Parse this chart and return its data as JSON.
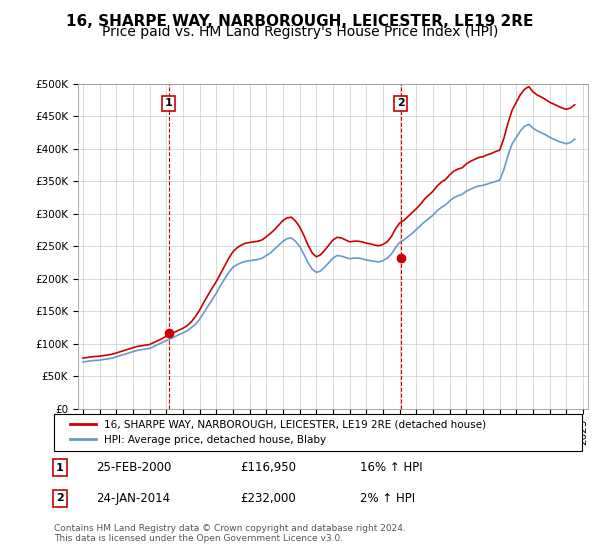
{
  "title": "16, SHARPE WAY, NARBOROUGH, LEICESTER, LE19 2RE",
  "subtitle": "Price paid vs. HM Land Registry's House Price Index (HPI)",
  "ylabel_ticks": [
    "£0",
    "£50K",
    "£100K",
    "£150K",
    "£200K",
    "£250K",
    "£300K",
    "£350K",
    "£400K",
    "£450K",
    "£500K"
  ],
  "ytick_values": [
    0,
    50000,
    100000,
    150000,
    200000,
    250000,
    300000,
    350000,
    400000,
    450000,
    500000
  ],
  "ylim": [
    0,
    500000
  ],
  "xlim_years": [
    1995,
    2025
  ],
  "xtick_years": [
    1995,
    1996,
    1997,
    1998,
    1999,
    2000,
    2001,
    2002,
    2003,
    2004,
    2005,
    2006,
    2007,
    2008,
    2009,
    2010,
    2011,
    2012,
    2013,
    2014,
    2015,
    2016,
    2017,
    2018,
    2019,
    2020,
    2021,
    2022,
    2023,
    2024,
    2025
  ],
  "sale1_x": 2000.15,
  "sale1_y": 116950,
  "sale1_label": "1",
  "sale2_x": 2014.07,
  "sale2_y": 232000,
  "sale2_label": "2",
  "vline1_x": 2000.15,
  "vline2_x": 2014.07,
  "legend_line1": "16, SHARPE WAY, NARBOROUGH, LEICESTER, LE19 2RE (detached house)",
  "legend_line2": "HPI: Average price, detached house, Blaby",
  "annotation1_box": "1",
  "annotation1_date": "25-FEB-2000",
  "annotation1_price": "£116,950",
  "annotation1_hpi": "16% ↑ HPI",
  "annotation2_box": "2",
  "annotation2_date": "24-JAN-2014",
  "annotation2_price": "£232,000",
  "annotation2_hpi": "2% ↑ HPI",
  "footer": "Contains HM Land Registry data © Crown copyright and database right 2024.\nThis data is licensed under the Open Government Licence v3.0.",
  "line_color_red": "#cc0000",
  "line_color_blue": "#6699cc",
  "background_color": "#ffffff",
  "grid_color": "#cccccc",
  "title_fontsize": 11,
  "subtitle_fontsize": 10,
  "hpi_years": [
    1995.0,
    1995.25,
    1995.5,
    1995.75,
    1996.0,
    1996.25,
    1996.5,
    1996.75,
    1997.0,
    1997.25,
    1997.5,
    1997.75,
    1998.0,
    1998.25,
    1998.5,
    1998.75,
    1999.0,
    1999.25,
    1999.5,
    1999.75,
    2000.0,
    2000.25,
    2000.5,
    2000.75,
    2001.0,
    2001.25,
    2001.5,
    2001.75,
    2002.0,
    2002.25,
    2002.5,
    2002.75,
    2003.0,
    2003.25,
    2003.5,
    2003.75,
    2004.0,
    2004.25,
    2004.5,
    2004.75,
    2005.0,
    2005.25,
    2005.5,
    2005.75,
    2006.0,
    2006.25,
    2006.5,
    2006.75,
    2007.0,
    2007.25,
    2007.5,
    2007.75,
    2008.0,
    2008.25,
    2008.5,
    2008.75,
    2009.0,
    2009.25,
    2009.5,
    2009.75,
    2010.0,
    2010.25,
    2010.5,
    2010.75,
    2011.0,
    2011.25,
    2011.5,
    2011.75,
    2012.0,
    2012.25,
    2012.5,
    2012.75,
    2013.0,
    2013.25,
    2013.5,
    2013.75,
    2014.0,
    2014.25,
    2014.5,
    2014.75,
    2015.0,
    2015.25,
    2015.5,
    2015.75,
    2016.0,
    2016.25,
    2016.5,
    2016.75,
    2017.0,
    2017.25,
    2017.5,
    2017.75,
    2018.0,
    2018.25,
    2018.5,
    2018.75,
    2019.0,
    2019.25,
    2019.5,
    2019.75,
    2020.0,
    2020.25,
    2020.5,
    2020.75,
    2021.0,
    2021.25,
    2021.5,
    2021.75,
    2022.0,
    2022.25,
    2022.5,
    2022.75,
    2023.0,
    2023.25,
    2023.5,
    2023.75,
    2024.0,
    2024.25,
    2024.5
  ],
  "hpi_values": [
    72000,
    73000,
    74000,
    74500,
    75000,
    76000,
    77000,
    78000,
    80000,
    82000,
    84000,
    86000,
    88000,
    90000,
    91000,
    92000,
    93000,
    96000,
    99000,
    102000,
    105000,
    108000,
    111000,
    114000,
    117000,
    120000,
    125000,
    130000,
    138000,
    148000,
    158000,
    168000,
    178000,
    190000,
    200000,
    210000,
    218000,
    222000,
    225000,
    227000,
    228000,
    229000,
    230000,
    232000,
    236000,
    240000,
    246000,
    252000,
    258000,
    262000,
    263000,
    258000,
    250000,
    238000,
    225000,
    215000,
    210000,
    212000,
    218000,
    225000,
    232000,
    236000,
    235000,
    233000,
    231000,
    232000,
    232000,
    231000,
    229000,
    228000,
    227000,
    226000,
    228000,
    232000,
    238000,
    248000,
    256000,
    260000,
    265000,
    270000,
    276000,
    282000,
    288000,
    293000,
    298000,
    305000,
    310000,
    314000,
    320000,
    325000,
    328000,
    330000,
    335000,
    338000,
    341000,
    343000,
    344000,
    346000,
    348000,
    350000,
    352000,
    368000,
    390000,
    408000,
    418000,
    428000,
    435000,
    438000,
    432000,
    428000,
    425000,
    422000,
    418000,
    415000,
    412000,
    410000,
    408000,
    410000,
    415000
  ],
  "price_years": [
    1995.0,
    1995.25,
    1995.5,
    1995.75,
    1996.0,
    1996.25,
    1996.5,
    1996.75,
    1997.0,
    1997.25,
    1997.5,
    1997.75,
    1998.0,
    1998.25,
    1998.5,
    1998.75,
    1999.0,
    1999.25,
    1999.5,
    1999.75,
    2000.0,
    2000.25,
    2000.5,
    2000.75,
    2001.0,
    2001.25,
    2001.5,
    2001.75,
    2002.0,
    2002.25,
    2002.5,
    2002.75,
    2003.0,
    2003.25,
    2003.5,
    2003.75,
    2004.0,
    2004.25,
    2004.5,
    2004.75,
    2005.0,
    2005.25,
    2005.5,
    2005.75,
    2006.0,
    2006.25,
    2006.5,
    2006.75,
    2007.0,
    2007.25,
    2007.5,
    2007.75,
    2008.0,
    2008.25,
    2008.5,
    2008.75,
    2009.0,
    2009.25,
    2009.5,
    2009.75,
    2010.0,
    2010.25,
    2010.5,
    2010.75,
    2011.0,
    2011.25,
    2011.5,
    2011.75,
    2012.0,
    2012.25,
    2012.5,
    2012.75,
    2013.0,
    2013.25,
    2013.5,
    2013.75,
    2014.0,
    2014.25,
    2014.5,
    2014.75,
    2015.0,
    2015.25,
    2015.5,
    2015.75,
    2016.0,
    2016.25,
    2016.5,
    2016.75,
    2017.0,
    2017.25,
    2017.5,
    2017.75,
    2018.0,
    2018.25,
    2018.5,
    2018.75,
    2019.0,
    2019.25,
    2019.5,
    2019.75,
    2020.0,
    2020.25,
    2020.5,
    2020.75,
    2021.0,
    2021.25,
    2021.5,
    2021.75,
    2022.0,
    2022.25,
    2022.5,
    2022.75,
    2023.0,
    2023.25,
    2023.5,
    2023.75,
    2024.0,
    2024.25,
    2024.5
  ],
  "price_values": [
    78000,
    79000,
    80000,
    80500,
    81000,
    82000,
    83000,
    84000,
    86000,
    88000,
    90000,
    92000,
    94000,
    96000,
    97000,
    98000,
    99000,
    102000,
    105000,
    108000,
    112000,
    115000,
    118000,
    121000,
    124000,
    128000,
    134000,
    142000,
    152000,
    164000,
    175000,
    186000,
    196000,
    208000,
    220000,
    232000,
    242000,
    248000,
    252000,
    255000,
    256000,
    257000,
    258000,
    260000,
    265000,
    270000,
    276000,
    283000,
    290000,
    294000,
    295000,
    289000,
    280000,
    267000,
    252000,
    240000,
    234000,
    237000,
    244000,
    252000,
    260000,
    264000,
    263000,
    260000,
    257000,
    258000,
    258000,
    257000,
    255000,
    254000,
    252000,
    251000,
    253000,
    257000,
    265000,
    277000,
    286000,
    290000,
    296000,
    302000,
    308000,
    315000,
    323000,
    329000,
    335000,
    343000,
    349000,
    353000,
    360000,
    366000,
    369000,
    371000,
    377000,
    381000,
    384000,
    387000,
    388000,
    391000,
    393000,
    396000,
    398000,
    416000,
    440000,
    460000,
    472000,
    484000,
    492000,
    496000,
    488000,
    483000,
    480000,
    476000,
    472000,
    469000,
    466000,
    463000,
    461000,
    463000,
    468000
  ]
}
